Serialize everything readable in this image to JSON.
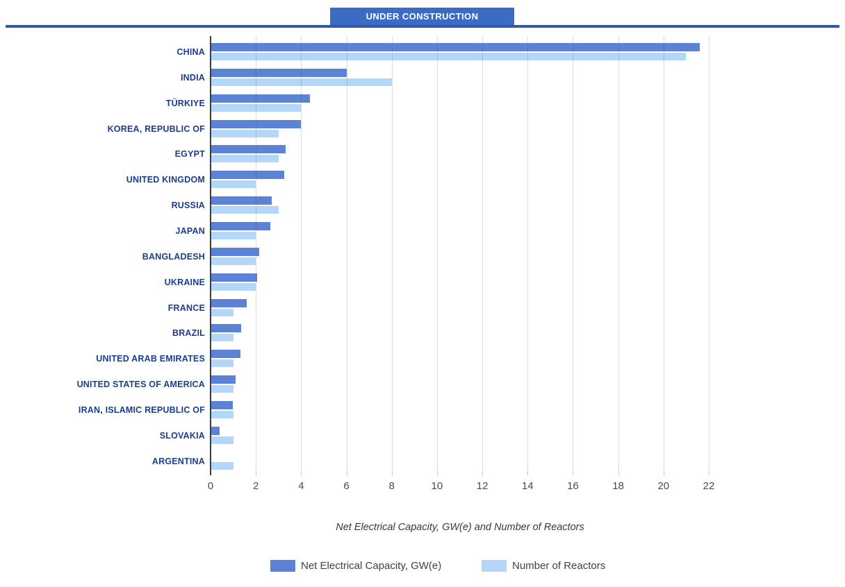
{
  "title": "UNDER CONSTRUCTION",
  "chart_data": {
    "type": "bar",
    "orientation": "horizontal",
    "title": "UNDER CONSTRUCTION",
    "xlabel": "Net Electrical Capacity, GW(e) and Number of Reactors",
    "xlim": [
      0,
      22
    ],
    "x_ticks": [
      0,
      2,
      4,
      6,
      8,
      10,
      12,
      14,
      16,
      18,
      20,
      22
    ],
    "grid": true,
    "legend_position": "bottom",
    "categories": [
      "CHINA",
      "INDIA",
      "TÜRKIYE",
      "KOREA, REPUBLIC OF",
      "EGYPT",
      "UNITED KINGDOM",
      "RUSSIA",
      "JAPAN",
      "BANGLADESH",
      "UKRAINE",
      "FRANCE",
      "BRAZIL",
      "UNITED ARAB EMIRATES",
      "UNITED STATES OF AMERICA",
      "IRAN, ISLAMIC REPUBLIC OF",
      "SLOVAKIA",
      "ARGENTINA"
    ],
    "series": [
      {
        "name": "Net Electrical Capacity, GW(e)",
        "color": "#5B82D4",
        "values": [
          21.6,
          6.0,
          4.4,
          4.0,
          3.3,
          3.26,
          2.7,
          2.65,
          2.16,
          2.05,
          1.6,
          1.34,
          1.31,
          1.1,
          0.97,
          0.4,
          0.03
        ]
      },
      {
        "name": "Number of Reactors",
        "color": "#B4D7F9",
        "values": [
          21,
          8,
          4,
          3,
          3,
          2,
          3,
          2,
          2,
          2,
          1,
          1,
          1,
          1,
          1,
          1,
          1
        ]
      }
    ]
  },
  "legend": {
    "items": [
      {
        "label": "Net Electrical Capacity, GW(e)",
        "color": "#5B82D4"
      },
      {
        "label": "Number of Reactors",
        "color": "#B4D7F9"
      }
    ]
  },
  "colors": {
    "title_bg": "#3A6BC5",
    "title_text": "#FFFFFF",
    "rule": "#2D5BA7",
    "country_label": "#1B3D8F",
    "gridline": "rgba(90,90,90,0.22)",
    "tickmark": "#BFBFBF",
    "axis_line": "#3B3B3B",
    "capacity_bar": "#5B82D4",
    "reactors_bar": "#B4D7F9"
  }
}
